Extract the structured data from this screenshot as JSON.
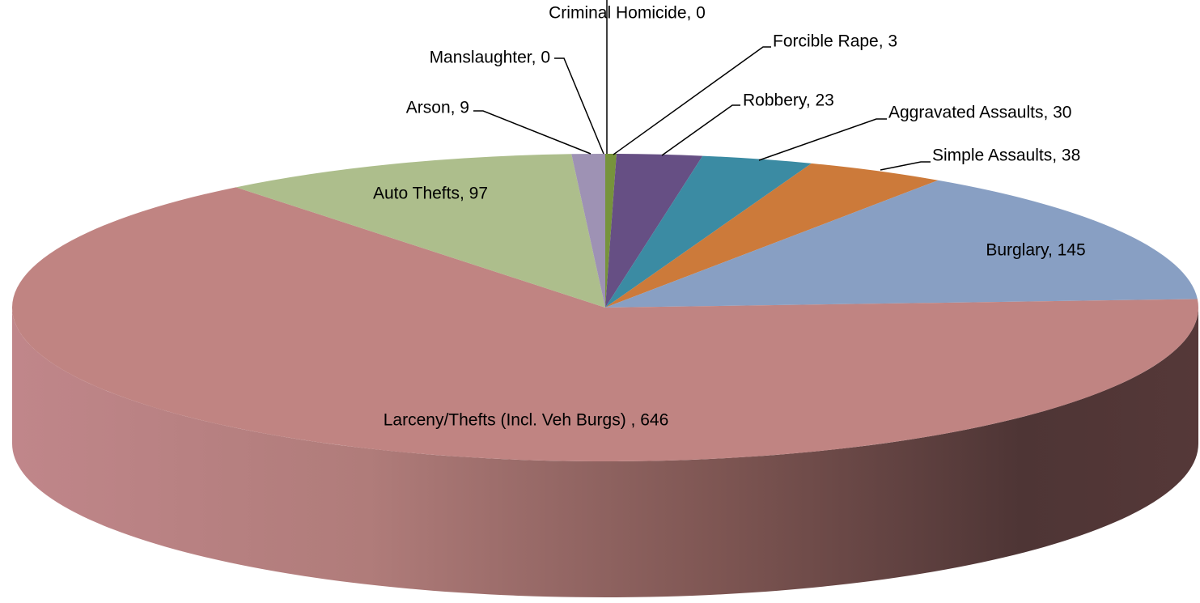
{
  "chart_data": {
    "type": "pie",
    "categories": [
      "Criminal Homicide",
      "Forcible Rape",
      "Robbery",
      "Aggravated Assaults",
      "Simple Assaults",
      "Burglary",
      "Larceny/Thefts (Incl. Veh Burgs)",
      "Auto Thefts",
      "Arson",
      "Manslaughter"
    ],
    "values": [
      0,
      3,
      23,
      30,
      38,
      145,
      646,
      97,
      9,
      0
    ],
    "value_labels": [
      "Criminal Homicide, 0",
      "Forcible Rape, 3",
      "Robbery, 23",
      "Aggravated Assaults, 30",
      "Simple Assaults, 38",
      "Burglary, 145",
      "Larceny/Thefts (Incl. Veh Burgs)  , 646",
      "Auto Thefts, 97",
      "Arson, 9",
      "Manslaughter, 0"
    ],
    "colors": [
      "#4f81bd",
      "#77933c",
      "#664f84",
      "#3b8ba3",
      "#cc7a3a",
      "#889fc3",
      "#c08482",
      "#adbe8c",
      "#9e92b4",
      "#8064a2"
    ]
  }
}
